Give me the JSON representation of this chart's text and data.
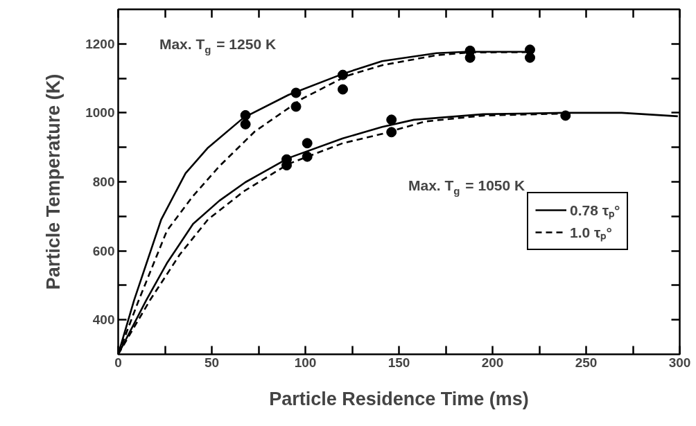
{
  "chart_data": {
    "type": "line",
    "xlabel": "Particle Residence Time (ms)",
    "ylabel": "Particle Temperature (K)",
    "xlim": [
      0,
      300
    ],
    "ylim": [
      300,
      1300
    ],
    "xticks": [
      0,
      {
        "value": 25,
        "label": null
      },
      50,
      {
        "value": 75,
        "label": null
      },
      100,
      {
        "value": 125,
        "label": null
      },
      150,
      {
        "value": 175,
        "label": null
      },
      200,
      {
        "value": 225,
        "label": null
      },
      250,
      {
        "value": 275,
        "label": null
      },
      300
    ],
    "yticks": [
      400,
      {
        "value": 500,
        "label": null
      },
      600,
      {
        "value": 700,
        "label": null
      },
      800,
      {
        "value": 900,
        "label": null
      },
      1000,
      {
        "value": 1100,
        "label": null
      },
      1200
    ],
    "grid": false,
    "legend": "right",
    "annotations": [
      "Max. T$_{g}$ = 1250 K",
      "Max. T$_{g}$ = 1050 K"
    ],
    "series": [
      {
        "name": "0.78 τₚ°",
        "color": "#000000",
        "line_style": "solid",
        "marker": "none",
        "x": [
          0,
          8.5,
          23,
          36,
          48,
          67,
          91,
          120,
          141,
          170,
          186,
          221
        ],
        "values": [
          300,
          457,
          691,
          825,
          899,
          986,
          1052,
          1113,
          1150,
          1173,
          1177,
          1177
        ]
      },
      {
        "name": "1.0 τₚ°",
        "color": "#000000",
        "line_style": "dashed",
        "marker": "none",
        "x": [
          0,
          11,
          26,
          40,
          54,
          73,
          98,
          122,
          141,
          170,
          188,
          221
        ],
        "values": [
          300,
          457,
          658,
          759,
          845,
          946,
          1040,
          1107,
          1138,
          1167,
          1175,
          1176
        ]
      },
      {
        "color": "#000000",
        "line_style": "solid",
        "marker": "none",
        "x": [
          0,
          15,
          26,
          40,
          54,
          68,
          91,
          120,
          141,
          158,
          195,
          238,
          269,
          299
        ],
        "values": [
          300,
          457,
          564,
          678,
          745,
          799,
          869,
          926,
          959,
          980,
          996,
          1000,
          1000,
          990
        ]
      },
      {
        "color": "#000000",
        "line_style": "dashed",
        "marker": "none",
        "x": [
          0,
          17,
          33,
          48,
          67,
          91,
          120,
          141,
          164,
          195,
          238
        ],
        "values": [
          300,
          457,
          590,
          691,
          772,
          852,
          912,
          939,
          975,
          992,
          998
        ]
      },
      {
        "type": "scatter",
        "color": "#000000",
        "marker": "circle",
        "x": [
          68,
          68,
          95,
          95,
          120,
          120,
          188,
          188,
          220,
          220
        ],
        "values": [
          993,
          967,
          1058,
          1018,
          1110,
          1068,
          1180,
          1160,
          1183,
          1160
        ]
      },
      {
        "type": "scatter",
        "color": "#000000",
        "marker": "circle",
        "x": [
          90,
          90,
          101,
          101,
          146,
          146,
          239
        ],
        "values": [
          865,
          848,
          912,
          873,
          980,
          944,
          992
        ]
      }
    ]
  }
}
